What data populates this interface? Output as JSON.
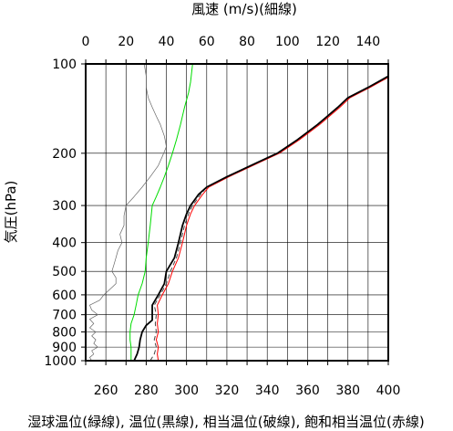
{
  "chart_data": {
    "type": "line",
    "title_top": "風速 (m/s)(細線)",
    "ylabel": "気圧(hPa)",
    "xlabel_bottom": "湿球温位(緑線), 温位(黒線), 相当温位(破線), 飽和相当温位(赤線)",
    "y_axis": {
      "scale": "log",
      "range": [
        1000,
        100
      ],
      "ticks": [
        100,
        200,
        300,
        400,
        500,
        600,
        700,
        800,
        900,
        1000
      ]
    },
    "x_axis_bottom": {
      "range": [
        250,
        400
      ],
      "ticks": [
        260,
        280,
        300,
        320,
        340,
        360,
        380,
        400
      ]
    },
    "x_axis_top": {
      "range": [
        0,
        150
      ],
      "ticks": [
        0,
        20,
        40,
        60,
        80,
        100,
        120,
        140
      ]
    },
    "colors": {
      "wind_speed": "#666666",
      "wet_bulb_potential_temperature": "#00dd00",
      "potential_temperature": "#000000",
      "equivalent_potential_temperature": "#444444",
      "saturated_equivalent_potential_temperature": "#ff0000"
    },
    "series": [
      {
        "key": "wind_speed",
        "axis": "top",
        "linewidth": 0.7,
        "points": [
          [
            3,
            1000
          ],
          [
            2,
            975
          ],
          [
            4,
            950
          ],
          [
            3,
            925
          ],
          [
            6,
            900
          ],
          [
            4,
            875
          ],
          [
            5,
            850
          ],
          [
            3,
            825
          ],
          [
            5,
            800
          ],
          [
            2,
            775
          ],
          [
            4,
            750
          ],
          [
            2,
            725
          ],
          [
            6,
            700
          ],
          [
            3,
            675
          ],
          [
            2,
            650
          ],
          [
            7,
            625
          ],
          [
            9,
            600
          ],
          [
            12,
            575
          ],
          [
            15,
            550
          ],
          [
            15,
            525
          ],
          [
            13,
            500
          ],
          [
            14,
            475
          ],
          [
            15,
            450
          ],
          [
            16,
            425
          ],
          [
            18,
            400
          ],
          [
            17,
            375
          ],
          [
            19,
            350
          ],
          [
            19,
            325
          ],
          [
            20,
            300
          ],
          [
            24,
            280
          ],
          [
            28,
            260
          ],
          [
            32,
            240
          ],
          [
            36,
            220
          ],
          [
            38,
            205
          ],
          [
            40,
            190
          ],
          [
            39,
            175
          ],
          [
            37,
            160
          ],
          [
            35,
            150
          ],
          [
            33,
            140
          ],
          [
            31,
            130
          ],
          [
            30,
            120
          ],
          [
            30,
            110
          ],
          [
            29,
            100
          ]
        ]
      },
      {
        "key": "wet_bulb_potential_temperature",
        "axis": "bottom",
        "linewidth": 1.0,
        "points": [
          [
            272.5,
            1000
          ],
          [
            272.5,
            950
          ],
          [
            272.5,
            900
          ],
          [
            272,
            850
          ],
          [
            272,
            800
          ],
          [
            272.5,
            750
          ],
          [
            274,
            700
          ],
          [
            275,
            650
          ],
          [
            276,
            600
          ],
          [
            278,
            550
          ],
          [
            279.5,
            500
          ],
          [
            280,
            450
          ],
          [
            281,
            400
          ],
          [
            282,
            350
          ],
          [
            283,
            300
          ],
          [
            285,
            280
          ],
          [
            287,
            260
          ],
          [
            289,
            240
          ],
          [
            291,
            220
          ],
          [
            293,
            200
          ],
          [
            295,
            180
          ],
          [
            297,
            160
          ],
          [
            299,
            140
          ],
          [
            301,
            125
          ],
          [
            302,
            115
          ],
          [
            303,
            100
          ]
        ]
      },
      {
        "key": "equivalent_potential_temperature",
        "axis": "bottom",
        "linewidth": 1.0,
        "points": [
          [
            282,
            1000
          ],
          [
            284,
            950
          ],
          [
            285,
            900
          ],
          [
            284,
            850
          ],
          [
            285,
            800
          ],
          [
            284.5,
            750
          ],
          [
            285,
            700
          ],
          [
            284,
            650
          ],
          [
            287,
            600
          ],
          [
            290,
            550
          ],
          [
            292,
            500
          ],
          [
            295,
            450
          ],
          [
            297,
            400
          ],
          [
            299,
            350
          ],
          [
            301,
            320
          ],
          [
            303,
            300
          ],
          [
            307,
            275
          ],
          [
            310,
            260
          ],
          [
            320,
            240
          ],
          [
            335,
            215
          ],
          [
            345,
            200
          ],
          [
            355,
            180
          ],
          [
            365,
            160
          ],
          [
            375,
            140
          ],
          [
            380,
            130
          ],
          [
            390,
            120
          ],
          [
            400,
            110
          ],
          [
            410,
            100
          ]
        ]
      },
      {
        "key": "saturated_equivalent_potential_temperature",
        "axis": "bottom",
        "linewidth": 1.0,
        "points": [
          [
            286,
            1000
          ],
          [
            285.5,
            950
          ],
          [
            286,
            900
          ],
          [
            285,
            850
          ],
          [
            286,
            800
          ],
          [
            285.5,
            750
          ],
          [
            286,
            700
          ],
          [
            285.5,
            650
          ],
          [
            288,
            600
          ],
          [
            291,
            550
          ],
          [
            293,
            500
          ],
          [
            296,
            450
          ],
          [
            298,
            400
          ],
          [
            300,
            350
          ],
          [
            302,
            320
          ],
          [
            304,
            300
          ],
          [
            308,
            275
          ],
          [
            311,
            260
          ],
          [
            321,
            240
          ],
          [
            336,
            215
          ],
          [
            346,
            200
          ],
          [
            356,
            180
          ],
          [
            366,
            160
          ],
          [
            376,
            140
          ],
          [
            381,
            130
          ],
          [
            391,
            120
          ],
          [
            401,
            110
          ],
          [
            411,
            100
          ]
        ]
      },
      {
        "key": "potential_temperature",
        "axis": "bottom",
        "linewidth": 1.8,
        "points": [
          [
            274,
            1000
          ],
          [
            275.5,
            950
          ],
          [
            276.5,
            900
          ],
          [
            277,
            850
          ],
          [
            278,
            800
          ],
          [
            280,
            760
          ],
          [
            283,
            730
          ],
          [
            283,
            700
          ],
          [
            283,
            650
          ],
          [
            286,
            600
          ],
          [
            289,
            550
          ],
          [
            290,
            500
          ],
          [
            294,
            450
          ],
          [
            296,
            400
          ],
          [
            298,
            350
          ],
          [
            300,
            320
          ],
          [
            302,
            300
          ],
          [
            306,
            275
          ],
          [
            310,
            260
          ],
          [
            320,
            240
          ],
          [
            335,
            215
          ],
          [
            345,
            200
          ],
          [
            355,
            180
          ],
          [
            365,
            160
          ],
          [
            375,
            140
          ],
          [
            380,
            130
          ],
          [
            390,
            120
          ],
          [
            400,
            110
          ],
          [
            410,
            100
          ]
        ]
      }
    ]
  }
}
